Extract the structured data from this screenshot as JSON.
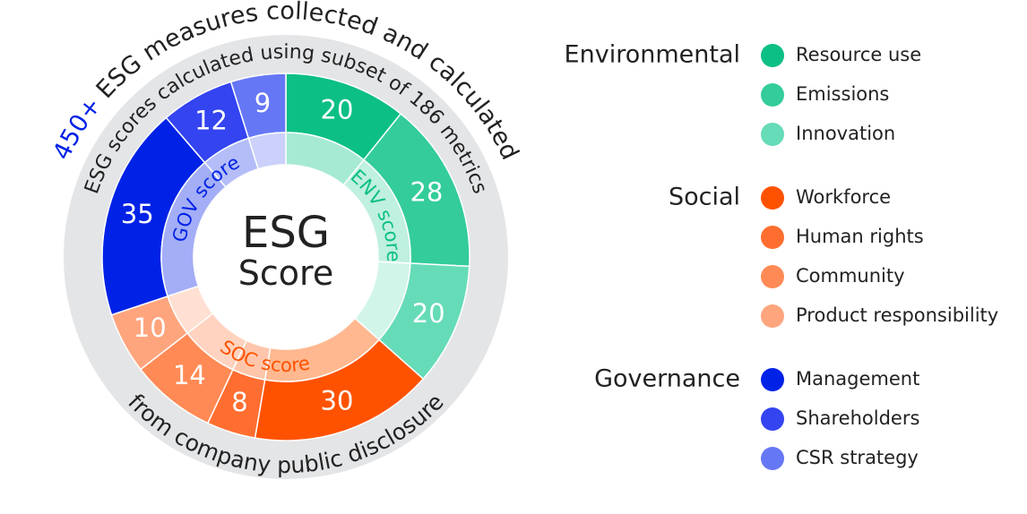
{
  "chart_data": {
    "type": "sunburst",
    "center_label": [
      "ESG",
      "Score"
    ],
    "arc_texts": {
      "highlight": "450+",
      "highlight_color": "#0022e6",
      "outer": "ESG measures collected and calculated",
      "inner": "ESG scores calculated using subset of 186 metrics",
      "bottom": "from company public disclosure"
    },
    "groups": [
      {
        "name": "Environmental",
        "label": "ENV score",
        "color": "#0cbf85",
        "children": [
          {
            "name": "Resource use",
            "value": 20,
            "color": "#0cbf85",
            "inner_color": "#a6ead4"
          },
          {
            "name": "Emissions",
            "value": 28,
            "color": "#33cc9a",
            "inner_color": "#bff0e0"
          },
          {
            "name": "Innovation",
            "value": 20,
            "color": "#66dbb8",
            "inner_color": "#d2f5ea"
          }
        ]
      },
      {
        "name": "Social",
        "label": "SOC score",
        "color": "#ff5200",
        "children": [
          {
            "name": "Workforce",
            "value": 30,
            "color": "#ff5200",
            "inner_color": "#ffb890"
          },
          {
            "name": "Human rights",
            "value": 8,
            "color": "#ff6e30",
            "inner_color": "#ffc6ac"
          },
          {
            "name": "Community",
            "value": 14,
            "color": "#ff8a55",
            "inner_color": "#ffd3bf"
          },
          {
            "name": "Product responsibility",
            "value": 10,
            "color": "#ffa57e",
            "inner_color": "#ffe0d2"
          }
        ]
      },
      {
        "name": "Governance",
        "label": "GOV score",
        "color": "#0022e6",
        "children": [
          {
            "name": "Management",
            "value": 35,
            "color": "#0022e6",
            "inner_color": "#a3aef7"
          },
          {
            "name": "Shareholders",
            "value": 12,
            "color": "#3344f0",
            "inner_color": "#b4bdf8"
          },
          {
            "name": "CSR strategy",
            "value": 9,
            "color": "#6677f5",
            "inner_color": "#cbd1fa"
          }
        ]
      }
    ]
  }
}
